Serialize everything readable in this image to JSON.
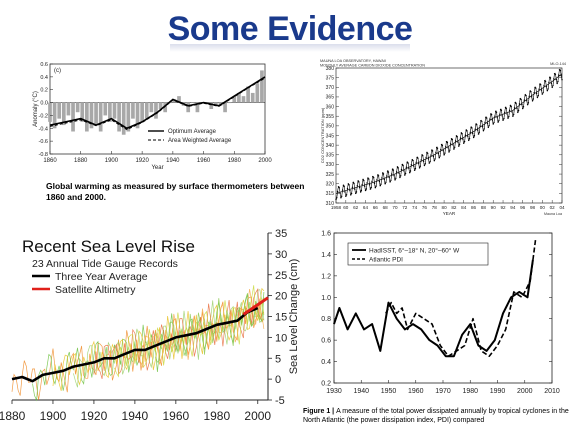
{
  "title": "Some Evidence",
  "colors": {
    "title": "#1a3a8c",
    "black_series": "#000000",
    "red_series": "#e0201a",
    "accent_orange": "#f08a24",
    "accent_green": "#6abf3c"
  },
  "chart_data": [
    {
      "type": "bar",
      "panel_label": "(c)",
      "ylabel": "Anomaly (°C)",
      "xlabel": "Year",
      "xlim": [
        1860,
        2000
      ],
      "ylim": [
        -0.8,
        0.6
      ],
      "x_ticks": [
        "1860",
        "1880",
        "1900",
        "1920",
        "1940",
        "1960",
        "1980",
        "2000"
      ],
      "y_ticks": [
        "0.6",
        "0.4",
        "0.2",
        "0.0",
        "-0.2",
        "-0.4",
        "-0.6",
        "-0.8"
      ],
      "caption": "Global warming as measured by surface thermometers between 1860 and 2000.",
      "series": [
        {
          "name": "Optimum Average",
          "x": [
            1860,
            1870,
            1880,
            1890,
            1900,
            1910,
            1920,
            1930,
            1940,
            1950,
            1960,
            1970,
            1980,
            1990,
            2000
          ],
          "values": [
            -0.35,
            -0.3,
            -0.25,
            -0.35,
            -0.25,
            -0.4,
            -0.3,
            -0.15,
            0.05,
            -0.05,
            0.0,
            -0.05,
            0.1,
            0.25,
            0.4
          ]
        },
        {
          "name": "Area Weighted Average",
          "x": [
            1860,
            1870,
            1880,
            1890,
            1900,
            1910,
            1920,
            1930,
            1940,
            1950,
            1960,
            1970,
            1980,
            1990,
            2000
          ],
          "values": [
            -0.37,
            -0.32,
            -0.27,
            -0.36,
            -0.27,
            -0.42,
            -0.31,
            -0.16,
            0.04,
            -0.06,
            -0.01,
            -0.06,
            0.09,
            0.24,
            0.38
          ]
        }
      ],
      "bars_x": [
        1860,
        1863,
        1866,
        1869,
        1872,
        1875,
        1878,
        1881,
        1884,
        1887,
        1890,
        1893,
        1896,
        1899,
        1902,
        1905,
        1908,
        1911,
        1914,
        1917,
        1920,
        1923,
        1926,
        1929,
        1932,
        1935,
        1938,
        1941,
        1944,
        1947,
        1950,
        1953,
        1956,
        1959,
        1962,
        1965,
        1968,
        1971,
        1974,
        1977,
        1980,
        1983,
        1986,
        1989,
        1992,
        1995,
        1998
      ],
      "bars_values": [
        -0.3,
        -0.4,
        -0.25,
        -0.35,
        -0.2,
        -0.45,
        -0.15,
        -0.3,
        -0.45,
        -0.4,
        -0.35,
        -0.45,
        -0.2,
        -0.3,
        -0.25,
        -0.45,
        -0.5,
        -0.45,
        -0.25,
        -0.4,
        -0.3,
        -0.25,
        -0.15,
        -0.25,
        -0.1,
        -0.15,
        0.0,
        0.05,
        0.1,
        -0.05,
        -0.15,
        0.0,
        -0.15,
        0.0,
        0.0,
        -0.1,
        -0.05,
        -0.05,
        -0.15,
        0.0,
        0.1,
        0.15,
        0.1,
        0.25,
        0.15,
        0.3,
        0.5
      ]
    },
    {
      "type": "line",
      "title_line1": "MAUNA LOA OBSERVATORY, HAWAII",
      "title_line2": "MONTHLY AVERAGE CARBON DIOXIDE CONCENTRATION",
      "tag": "MLO-144",
      "ylabel": "CO2 CONCENTRATION (ppm)",
      "xlabel": "YEAR",
      "credit": "Mauna Loa",
      "xlim": [
        1958,
        2004
      ],
      "ylim": [
        310,
        380
      ],
      "x_ticks": [
        "1958",
        "60",
        "62",
        "64",
        "66",
        "68",
        "70",
        "72",
        "74",
        "76",
        "78",
        "80",
        "82",
        "84",
        "86",
        "88",
        "90",
        "92",
        "94",
        "96",
        "98",
        "00",
        "02",
        "04"
      ],
      "y_ticks": [
        "380",
        "375",
        "370",
        "365",
        "360",
        "355",
        "350",
        "345",
        "340",
        "335",
        "330",
        "325",
        "320",
        "315",
        "310"
      ],
      "series": [
        {
          "name": "CO2",
          "x": [
            1958,
            1962,
            1966,
            1970,
            1974,
            1978,
            1982,
            1986,
            1990,
            1994,
            1998,
            2002,
            2004
          ],
          "values": [
            315,
            318,
            321,
            325,
            330,
            335,
            341,
            347,
            354,
            358,
            366,
            373,
            377
          ]
        }
      ],
      "seasonal_amplitude_ppm": 3.2
    },
    {
      "type": "line",
      "title": "Recent Sea Level Rise",
      "subtitle": "23 Annual Tide Gauge Records",
      "ylabel": "Sea Level Change (cm)",
      "xlim": [
        1880,
        2005
      ],
      "ylim": [
        -5,
        35
      ],
      "x_ticks": [
        "1880",
        "1900",
        "1920",
        "1940",
        "1960",
        "1980",
        "2000"
      ],
      "y_ticks": [
        "35",
        "30",
        "25",
        "20",
        "15",
        "10",
        "5",
        "0",
        "-5"
      ],
      "series": [
        {
          "name": "Three Year Average",
          "color": "#000000",
          "x": [
            1880,
            1885,
            1890,
            1895,
            1900,
            1905,
            1910,
            1915,
            1920,
            1925,
            1930,
            1935,
            1940,
            1945,
            1950,
            1955,
            1960,
            1965,
            1970,
            1975,
            1980,
            1985,
            1990,
            1995,
            2000
          ],
          "values": [
            0,
            0.5,
            -0.5,
            1,
            1.5,
            2,
            3,
            3.5,
            4,
            5,
            5,
            6,
            7,
            7,
            8,
            9,
            10,
            10.5,
            11,
            12,
            13,
            13.5,
            14,
            16,
            17
          ]
        },
        {
          "name": "Satellite Altimetry",
          "color": "#e0201a",
          "x": [
            1993,
            1996,
            1999,
            2002,
            2005
          ],
          "values": [
            15.5,
            16.5,
            17.5,
            18.5,
            19.5
          ]
        }
      ]
    },
    {
      "type": "line",
      "xlim": [
        1930,
        2010
      ],
      "ylim": [
        0.2,
        1.6
      ],
      "x_ticks": [
        "1930",
        "1940",
        "1950",
        "1960",
        "1970",
        "1980",
        "1990",
        "2000",
        "2010"
      ],
      "y_ticks": [
        "1.6",
        "1.4",
        "1.2",
        "1.0",
        "0.8",
        "0.6",
        "0.4",
        "0.2"
      ],
      "caption_bold": "Figure 1 | ",
      "caption": "A measure of the total power dissipated annually by tropical cyclones in the North Atlantic (the power dissipation index, PDI) compared",
      "series": [
        {
          "name": "HadISST, 6°–18° N, 20°–60° W",
          "style": "solid",
          "x": [
            1930,
            1932,
            1935,
            1938,
            1941,
            1944,
            1947,
            1950,
            1953,
            1956,
            1959,
            1962,
            1965,
            1968,
            1971,
            1974,
            1977,
            1980,
            1983,
            1986,
            1989,
            1992,
            1995,
            1998,
            2001,
            2003
          ],
          "values": [
            0.75,
            0.9,
            0.7,
            0.85,
            0.7,
            0.75,
            0.5,
            0.95,
            0.8,
            0.7,
            0.75,
            0.7,
            0.6,
            0.55,
            0.45,
            0.45,
            0.65,
            0.75,
            0.55,
            0.5,
            0.6,
            0.85,
            1.0,
            1.05,
            1.0,
            1.35
          ]
        },
        {
          "name": "Atlantic PDI",
          "style": "dashed",
          "x": [
            1949,
            1951,
            1953,
            1955,
            1957,
            1960,
            1963,
            1966,
            1969,
            1972,
            1975,
            1978,
            1981,
            1984,
            1987,
            1990,
            1993,
            1996,
            1999,
            2002,
            2004
          ],
          "values": [
            0.85,
            0.95,
            0.85,
            0.9,
            0.7,
            0.85,
            0.8,
            0.75,
            0.55,
            0.45,
            0.5,
            0.55,
            0.8,
            0.5,
            0.45,
            0.55,
            0.7,
            1.05,
            1.0,
            1.15,
            1.55
          ]
        }
      ]
    }
  ]
}
